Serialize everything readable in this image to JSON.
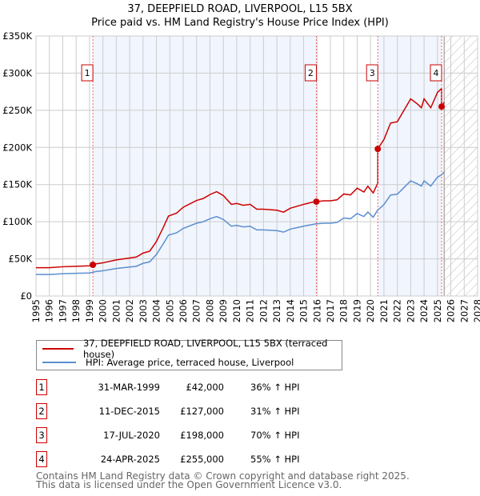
{
  "title": "37, DEEPFIELD ROAD, LIVERPOOL, L15 5BX",
  "subtitle": "Price paid vs. HM Land Registry's House Price Index (HPI)",
  "chart_data": {
    "type": "line",
    "title": "37, DEEPFIELD ROAD, LIVERPOOL, L15 5BX — Price paid vs. HM Land Registry's House Price Index (HPI)",
    "xlim": [
      1995,
      2028
    ],
    "ylim": [
      0,
      350000
    ],
    "y_ticks": [
      {
        "v": 0,
        "label": "£0"
      },
      {
        "v": 50000,
        "label": "£50K"
      },
      {
        "v": 100000,
        "label": "£100K"
      },
      {
        "v": 150000,
        "label": "£150K"
      },
      {
        "v": 200000,
        "label": "£200K"
      },
      {
        "v": 250000,
        "label": "£250K"
      },
      {
        "v": 300000,
        "label": "£300K"
      },
      {
        "v": 350000,
        "label": "£350K"
      }
    ],
    "x_ticks": [
      "1995",
      "1996",
      "1997",
      "1998",
      "1999",
      "2000",
      "2001",
      "2002",
      "2003",
      "2004",
      "2005",
      "2006",
      "2007",
      "2008",
      "2009",
      "2010",
      "2011",
      "2012",
      "2013",
      "2014",
      "2015",
      "2016",
      "2017",
      "2018",
      "2019",
      "2020",
      "2021",
      "2022",
      "2023",
      "2024",
      "2025",
      "2026",
      "2027",
      "2028"
    ],
    "grid": true,
    "forecast_hatch_from": 2025.5,
    "hpi_series": {
      "name": "HPI: Average price, terraced house, Liverpool",
      "color": "#5b8fd0",
      "x": [
        1995,
        1996,
        1997,
        1998,
        1999,
        1999.5,
        2000,
        2001,
        2002,
        2002.5,
        2003,
        2003.5,
        2004,
        2004.5,
        2004.9,
        2005.5,
        2006,
        2007,
        2007.5,
        2008,
        2008.5,
        2009,
        2009.6,
        2010,
        2010.5,
        2011,
        2011.5,
        2012,
        2013,
        2013.5,
        2014,
        2015,
        2015.9,
        2016.5,
        2017,
        2017.5,
        2018,
        2018.5,
        2019,
        2019.5,
        2019.8,
        2020.2,
        2020.5,
        2021,
        2021.5,
        2022,
        2022.5,
        2023,
        2023.5,
        2023.8,
        2024,
        2024.5,
        2025,
        2025.3,
        2025.5
      ],
      "y": [
        29000,
        29000,
        30000,
        30500,
        31000,
        33000,
        34000,
        37000,
        39000,
        40000,
        44000,
        46000,
        56000,
        70000,
        82000,
        85000,
        91000,
        98000,
        100000,
        104000,
        107000,
        103000,
        94000,
        95000,
        93000,
        94000,
        89000,
        89000,
        88000,
        86000,
        90000,
        94000,
        97000,
        98000,
        98000,
        99000,
        105000,
        104000,
        111000,
        107000,
        113000,
        106000,
        115000,
        123000,
        136000,
        137000,
        146000,
        155000,
        151000,
        148000,
        155000,
        148000,
        160000,
        163000,
        167000
      ]
    },
    "price_series": {
      "name": "37, DEEPFIELD ROAD, LIVERPOOL, L15 5BX (terraced house)",
      "color": "#cc0000"
    },
    "sales": [
      {
        "n": "1",
        "x": 1999.25,
        "date": "31-MAR-1999",
        "price": 42000,
        "price_label": "£42,000",
        "hpi": "36% ↑ HPI"
      },
      {
        "n": "2",
        "x": 2015.95,
        "date": "11-DEC-2015",
        "price": 127000,
        "price_label": "£127,000",
        "hpi": "31% ↑ HPI"
      },
      {
        "n": "3",
        "x": 2020.54,
        "date": "17-JUL-2020",
        "price": 198000,
        "price_label": "£198,000",
        "hpi": "70% ↑ HPI"
      },
      {
        "n": "4",
        "x": 2025.31,
        "date": "24-APR-2025",
        "price": 255000,
        "price_label": "£255,000",
        "hpi": "55% ↑ HPI"
      }
    ]
  },
  "legend": {
    "price": "37, DEEPFIELD ROAD, LIVERPOOL, L15 5BX (terraced house)",
    "hpi": "HPI: Average price, terraced house, Liverpool"
  },
  "footer": {
    "line1": "Contains HM Land Registry data © Crown copyright and database right 2025.",
    "line2": "This data is licensed under the Open Government Licence v3.0."
  }
}
